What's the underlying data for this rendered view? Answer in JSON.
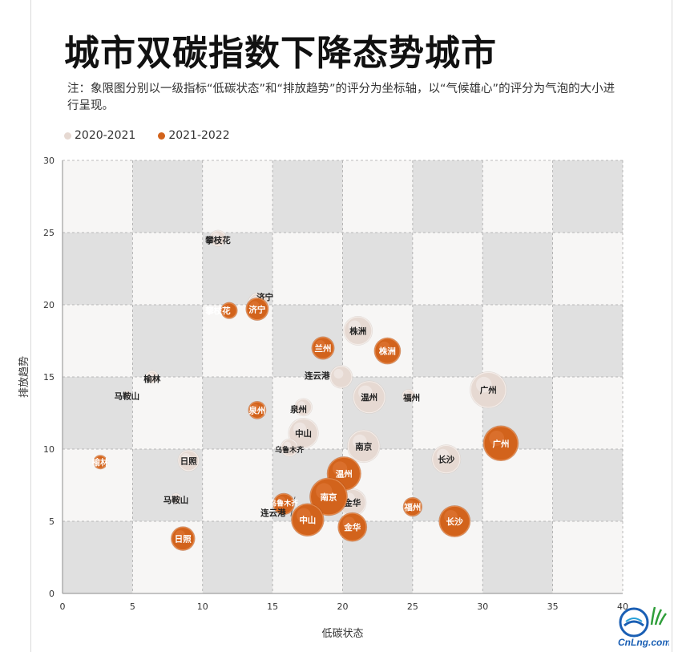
{
  "title": "城市双碳指数下降态势城市",
  "note": "注：象限图分别以一级指标“低碳状态”和“排放趋势”的评分为坐标轴，以“气候雄心”的评分为气泡的大小进行呈现。",
  "legend": [
    {
      "label": "2020-2021",
      "color": "#e6d9d2"
    },
    {
      "label": "2021-2022",
      "color": "#d2631c"
    }
  ],
  "watermark": "CnLng.com",
  "chart_data": {
    "type": "scatter",
    "xlabel": "低碳状态",
    "ylabel": "排放趋势",
    "xlim": [
      0,
      40
    ],
    "ylim": [
      0,
      30
    ],
    "xticks": [
      "0",
      "5",
      "10",
      "15",
      "20",
      "25",
      "30",
      "35",
      "40"
    ],
    "yticks": [
      "0",
      "5",
      "10",
      "15",
      "20",
      "25",
      "30"
    ],
    "grid": true,
    "legend_position": "top-left",
    "series": [
      {
        "name": "2020-2021",
        "color": "#e6d9d2",
        "points": [
          {
            "label": "攀枝花",
            "x": 11.1,
            "y": 24.6,
            "size": 1.2
          },
          {
            "label": "济宁",
            "x": 14.0,
            "y": 20.1,
            "size": 1.6
          },
          {
            "label": "株洲",
            "x": 21.1,
            "y": 18.2,
            "size": 2.2
          },
          {
            "label": "榆林",
            "x": 6.4,
            "y": 15.0,
            "size": 0.9
          },
          {
            "label": "马鞍山",
            "x": 4.6,
            "y": 13.8,
            "size": 0.5
          },
          {
            "label": "连云港",
            "x": 19.9,
            "y": 15.0,
            "size": 1.7
          },
          {
            "label": "温州",
            "x": 21.9,
            "y": 13.6,
            "size": 2.5
          },
          {
            "label": "福州",
            "x": 24.7,
            "y": 13.7,
            "size": 0.9
          },
          {
            "label": "广州",
            "x": 30.4,
            "y": 14.1,
            "size": 2.8
          },
          {
            "label": "泉州",
            "x": 17.2,
            "y": 12.9,
            "size": 1.3
          },
          {
            "label": "中山",
            "x": 17.2,
            "y": 11.1,
            "size": 2.3
          },
          {
            "label": "乌鲁木齐",
            "x": 16.2,
            "y": 10.1,
            "size": 1.3
          },
          {
            "label": "南京",
            "x": 21.5,
            "y": 10.2,
            "size": 2.5
          },
          {
            "label": "长沙",
            "x": 27.4,
            "y": 9.3,
            "size": 2.2
          },
          {
            "label": "日照",
            "x": 9.0,
            "y": 9.2,
            "size": 1.6
          },
          {
            "label": "金华",
            "x": 20.7,
            "y": 6.3,
            "size": 2.1
          },
          {
            "label": "马鞍山",
            "x": 8.1,
            "y": 6.6,
            "size": 0.7
          }
        ]
      },
      {
        "name": "2021-2022",
        "color": "#d2631c",
        "points": [
          {
            "label": "攀枝花",
            "x": 11.9,
            "y": 19.6,
            "size": 1.2
          },
          {
            "label": "济宁",
            "x": 13.9,
            "y": 19.7,
            "size": 1.7
          },
          {
            "label": "兰州",
            "x": 18.6,
            "y": 17.0,
            "size": 1.7
          },
          {
            "label": "株洲",
            "x": 23.2,
            "y": 16.8,
            "size": 2.0
          },
          {
            "label": "泉州",
            "x": 13.9,
            "y": 12.7,
            "size": 1.3
          },
          {
            "label": "广州",
            "x": 31.3,
            "y": 10.4,
            "size": 2.7
          },
          {
            "label": "榆林",
            "x": 2.7,
            "y": 9.1,
            "size": 1.0
          },
          {
            "label": "温州",
            "x": 20.1,
            "y": 8.3,
            "size": 2.6
          },
          {
            "label": "南京",
            "x": 19.0,
            "y": 6.7,
            "size": 2.9
          },
          {
            "label": "乌鲁木齐",
            "x": 15.8,
            "y": 6.2,
            "size": 1.6
          },
          {
            "label": "福州",
            "x": 25.0,
            "y": 6.0,
            "size": 1.4
          },
          {
            "label": "中山",
            "x": 17.5,
            "y": 5.1,
            "size": 2.5
          },
          {
            "label": "长沙",
            "x": 28.0,
            "y": 5.0,
            "size": 2.4
          },
          {
            "label": "金华",
            "x": 20.7,
            "y": 4.6,
            "size": 2.2
          },
          {
            "label": "日照",
            "x": 8.6,
            "y": 3.8,
            "size": 1.8
          },
          {
            "label": "连云港",
            "x": 15.5,
            "y": 5.9,
            "size": 0.0
          }
        ]
      }
    ]
  }
}
